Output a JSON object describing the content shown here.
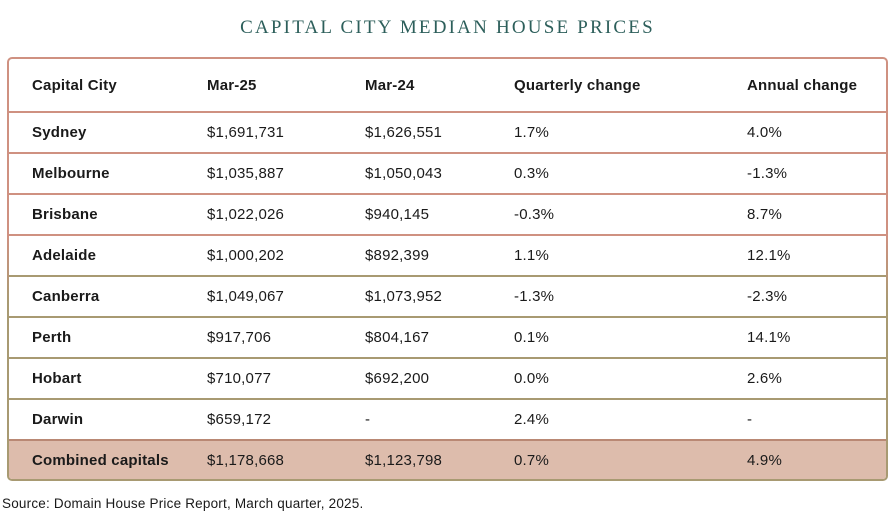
{
  "chart_data": {
    "type": "table",
    "title": "CAPITAL CITY MEDIAN HOUSE PRICES",
    "columns": [
      "Capital City",
      "Mar-25",
      "Mar-24",
      "Quarterly change",
      "Annual change"
    ],
    "rows": [
      [
        "Sydney",
        "$1,691,731",
        "$1,626,551",
        "1.7%",
        "4.0%"
      ],
      [
        "Melbourne",
        "$1,035,887",
        "$1,050,043",
        "0.3%",
        "-1.3%"
      ],
      [
        "Brisbane",
        "$1,022,026",
        "$940,145",
        "-0.3%",
        "8.7%"
      ],
      [
        "Adelaide",
        "$1,000,202",
        "$892,399",
        "1.1%",
        "12.1%"
      ],
      [
        "Canberra",
        "$1,049,067",
        "$1,073,952",
        "-1.3%",
        "-2.3%"
      ],
      [
        "Perth",
        "$917,706",
        "$804,167",
        "0.1%",
        "14.1%"
      ],
      [
        "Hobart",
        "$710,077",
        "$692,200",
        "0.0%",
        "2.6%"
      ],
      [
        "Darwin",
        "$659,172",
        "-",
        "2.4%",
        "-"
      ],
      [
        "Combined capitals",
        "$1,178,668",
        "$1,123,798",
        "0.7%",
        "4.9%"
      ]
    ],
    "source": "Source: Domain House Price Report, March quarter, 2025."
  },
  "colors": {
    "title_teal": "#2d5f5b",
    "border_salmon": "#cf9181",
    "border_olive": "#a89a72",
    "border_dark_salmon": "#b98874",
    "combined_row_bg": "#ddbcac",
    "text": "#1a1a1a",
    "header_divider": "#cf9181",
    "row_dividers": [
      "#cf9181",
      "#cf9181",
      "#cf9181",
      "#a89a72",
      "#a89a72",
      "#a89a72",
      "#a89a72",
      "#b98874",
      null
    ]
  }
}
